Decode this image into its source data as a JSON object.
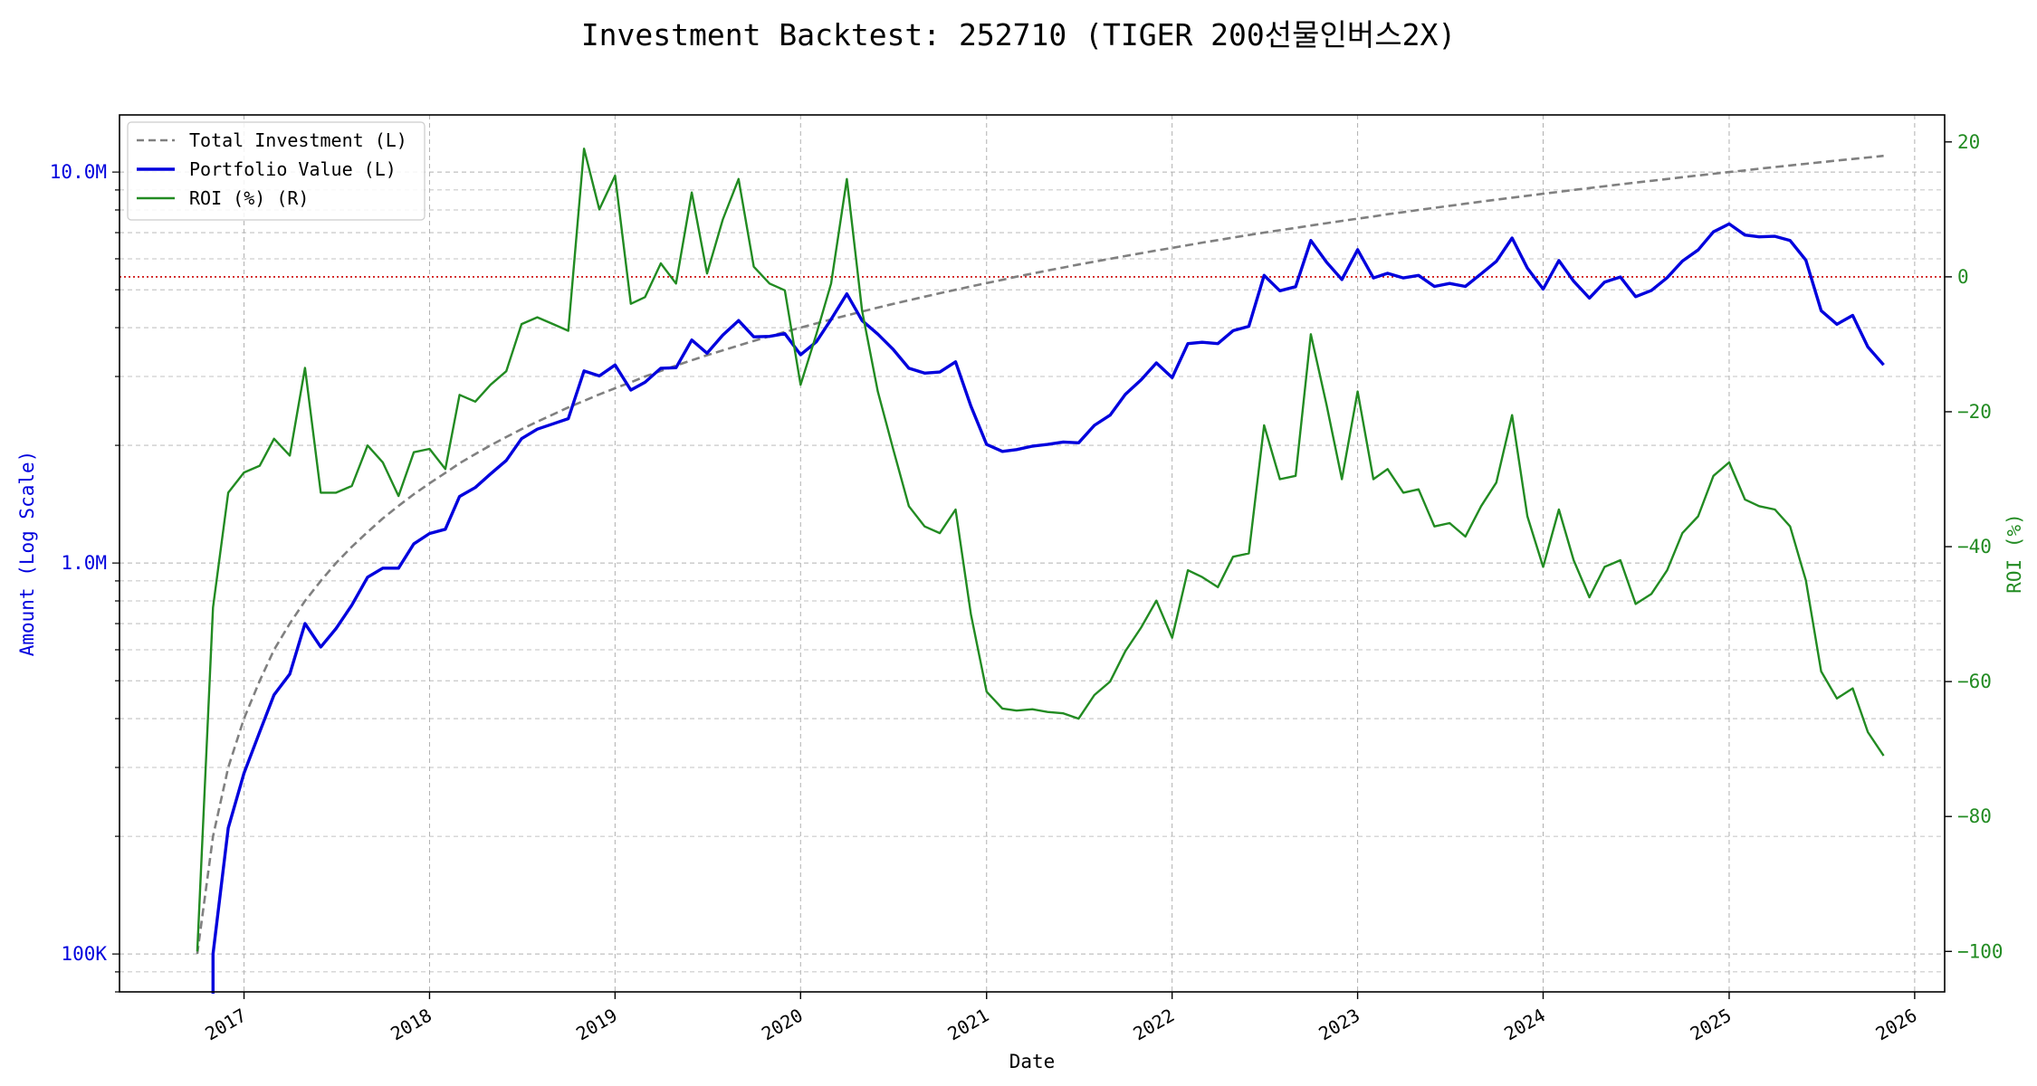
{
  "chart_data": {
    "type": "line",
    "title": "Investment Backtest: 252710 (TIGER 200선물인버스2X)",
    "xlabel": "Date",
    "ylabel_left": "Amount (Log Scale)",
    "ylabel_right": "ROI (%)",
    "y_left_scale": "log",
    "y_left_lim": [
      80000,
      14000000
    ],
    "y_right_lim": [
      -106,
      24
    ],
    "x_lim": [
      "2016-05-01",
      "2026-03-01"
    ],
    "grid": true,
    "legend_position": "upper-left",
    "x_ticks": [
      {
        "date": "2017-01-01",
        "label": "2017"
      },
      {
        "date": "2018-01-01",
        "label": "2018"
      },
      {
        "date": "2019-01-01",
        "label": "2019"
      },
      {
        "date": "2020-01-01",
        "label": "2020"
      },
      {
        "date": "2021-01-01",
        "label": "2021"
      },
      {
        "date": "2022-01-01",
        "label": "2022"
      },
      {
        "date": "2023-01-01",
        "label": "2023"
      },
      {
        "date": "2024-01-01",
        "label": "2024"
      },
      {
        "date": "2025-01-01",
        "label": "2025"
      },
      {
        "date": "2026-01-01",
        "label": "2026"
      }
    ],
    "y_left_ticks": [
      {
        "value": 100000,
        "label": "100K"
      },
      {
        "value": 1000000,
        "label": "1.0M"
      },
      {
        "value": 10000000,
        "label": "10.0M"
      }
    ],
    "y_right_ticks": [
      {
        "value": 20,
        "label": "20"
      },
      {
        "value": 0,
        "label": "0"
      },
      {
        "value": -20,
        "label": "−20"
      },
      {
        "value": -40,
        "label": "−40"
      },
      {
        "value": -60,
        "label": "−60"
      },
      {
        "value": -80,
        "label": "−80"
      },
      {
        "value": -100,
        "label": "−100"
      }
    ],
    "reference_line": {
      "axis": "right",
      "value": 0,
      "color": "#cc0000",
      "style": "dotted"
    },
    "dates": [
      "2016-10-01",
      "2016-11-01",
      "2016-12-01",
      "2017-01-01",
      "2017-02-01",
      "2017-03-01",
      "2017-04-01",
      "2017-05-01",
      "2017-06-01",
      "2017-07-01",
      "2017-08-01",
      "2017-09-01",
      "2017-10-01",
      "2017-11-01",
      "2017-12-01",
      "2018-01-01",
      "2018-02-01",
      "2018-03-01",
      "2018-04-01",
      "2018-05-01",
      "2018-06-01",
      "2018-07-01",
      "2018-08-01",
      "2018-09-01",
      "2018-10-01",
      "2018-11-01",
      "2018-12-01",
      "2019-01-01",
      "2019-02-01",
      "2019-03-01",
      "2019-04-01",
      "2019-05-01",
      "2019-06-01",
      "2019-07-01",
      "2019-08-01",
      "2019-09-01",
      "2019-10-01",
      "2019-11-01",
      "2019-12-01",
      "2020-01-01",
      "2020-02-01",
      "2020-03-01",
      "2020-04-01",
      "2020-05-01",
      "2020-06-01",
      "2020-07-01",
      "2020-08-01",
      "2020-09-01",
      "2020-10-01",
      "2020-11-01",
      "2020-12-01",
      "2021-01-01",
      "2021-02-01",
      "2021-03-01",
      "2021-04-01",
      "2021-05-01",
      "2021-06-01",
      "2021-07-01",
      "2021-08-01",
      "2021-09-01",
      "2021-10-01",
      "2021-11-01",
      "2021-12-01",
      "2022-01-01",
      "2022-02-01",
      "2022-03-01",
      "2022-04-01",
      "2022-05-01",
      "2022-06-01",
      "2022-07-01",
      "2022-08-01",
      "2022-09-01",
      "2022-10-01",
      "2022-11-01",
      "2022-12-01",
      "2023-01-01",
      "2023-02-01",
      "2023-03-01",
      "2023-04-01",
      "2023-05-01",
      "2023-06-01",
      "2023-07-01",
      "2023-08-01",
      "2023-09-01",
      "2023-10-01",
      "2023-11-01",
      "2023-12-01",
      "2024-01-01",
      "2024-02-01",
      "2024-03-01",
      "2024-04-01",
      "2024-05-01",
      "2024-06-01",
      "2024-07-01",
      "2024-08-01",
      "2024-09-01",
      "2024-10-01",
      "2024-11-01",
      "2024-12-01",
      "2025-01-01",
      "2025-02-01",
      "2025-03-01",
      "2025-04-01",
      "2025-05-01",
      "2025-06-01",
      "2025-07-01",
      "2025-08-01",
      "2025-09-01",
      "2025-10-01",
      "2025-11-01"
    ],
    "series": [
      {
        "name": "Total Investment (L)",
        "axis": "left",
        "color": "#808080",
        "style": "dashed",
        "values": [
          100000,
          200000,
          300000,
          400000,
          500000,
          600000,
          700000,
          800000,
          900000,
          1000000,
          1100000,
          1200000,
          1300000,
          1400000,
          1500000,
          1600000,
          1700000,
          1800000,
          1900000,
          2000000,
          2100000,
          2200000,
          2300000,
          2400000,
          2500000,
          2600000,
          2700000,
          2800000,
          2900000,
          3000000,
          3100000,
          3200000,
          3300000,
          3400000,
          3500000,
          3600000,
          3700000,
          3800000,
          3900000,
          4000000,
          4100000,
          4200000,
          4300000,
          4400000,
          4500000,
          4600000,
          4700000,
          4800000,
          4900000,
          5000000,
          5100000,
          5200000,
          5300000,
          5400000,
          5500000,
          5600000,
          5700000,
          5800000,
          5900000,
          6000000,
          6100000,
          6200000,
          6300000,
          6400000,
          6500000,
          6600000,
          6700000,
          6800000,
          6900000,
          7000000,
          7100000,
          7200000,
          7300000,
          7400000,
          7500000,
          7600000,
          7700000,
          7800000,
          7900000,
          8000000,
          8100000,
          8200000,
          8300000,
          8400000,
          8500000,
          8600000,
          8700000,
          8800000,
          8900000,
          9000000,
          9100000,
          9200000,
          9300000,
          9400000,
          9500000,
          9600000,
          9700000,
          9800000,
          9900000,
          10000000,
          10100000,
          10200000,
          10300000,
          10400000,
          10500000,
          10600000,
          10700000,
          10800000,
          10900000,
          11000000
        ]
      },
      {
        "name": "Portfolio Value (L)",
        "axis": "left",
        "color": "#0000dd",
        "style": "solid",
        "values": [
          null,
          100000,
          210000,
          290000,
          370000,
          460000,
          520000,
          700000,
          610000,
          680000,
          780000,
          920000,
          970000,
          970000,
          1120000,
          1190000,
          1220000,
          1480000,
          1560000,
          1690000,
          1830000,
          2080000,
          2200000,
          2270000,
          2340000,
          3100000,
          3010000,
          3210000,
          2770000,
          2900000,
          3150000,
          3160000,
          3720000,
          3440000,
          3830000,
          4170000,
          3790000,
          3800000,
          3860000,
          3410000,
          3680000,
          4200000,
          4880000,
          4170000,
          3850000,
          3520000,
          3150000,
          3060000,
          3080000,
          3270000,
          2520000,
          2010000,
          1930000,
          1950000,
          1990000,
          2010000,
          2040000,
          2030000,
          2250000,
          2390000,
          2700000,
          2940000,
          3250000,
          2980000,
          3640000,
          3670000,
          3640000,
          3930000,
          4030000,
          5440000,
          4970000,
          5090000,
          6680000,
          5880000,
          5310000,
          6330000,
          5360000,
          5510000,
          5360000,
          5440000,
          5100000,
          5190000,
          5100000,
          5490000,
          5910000,
          6780000,
          5680000,
          5020000,
          5940000,
          5260000,
          4760000,
          5230000,
          5390000,
          4800000,
          4980000,
          5370000,
          5920000,
          6320000,
          7030000,
          7370000,
          6900000,
          6830000,
          6850000,
          6680000,
          5950000,
          4420000,
          4080000,
          4300000,
          3570000,
          3210000
        ]
      },
      {
        "name": "ROI (%) (R)",
        "axis": "right",
        "color": "#228b22",
        "style": "solid",
        "values": [
          -100,
          -49,
          -32,
          -29,
          -28,
          -24,
          -26.5,
          -13.5,
          -32,
          -32,
          -31,
          -25,
          -27.5,
          -32.5,
          -26,
          -25.5,
          -28.5,
          -17.5,
          -18.5,
          -16,
          -14,
          -7,
          -6,
          -7,
          -8,
          19,
          10,
          15,
          -4,
          -3,
          2,
          -1,
          12.5,
          0.5,
          8.5,
          14.5,
          1.5,
          -1,
          -2,
          -16,
          -8.5,
          -1,
          14.5,
          -5,
          -17,
          -25.5,
          -34,
          -37,
          -38,
          -34.5,
          -50,
          -61.5,
          -64,
          -64.3,
          -64.1,
          -64.5,
          -64.7,
          -65.5,
          -62,
          -60,
          -55.5,
          -52,
          -48,
          -53.5,
          -43.5,
          -44.5,
          -46,
          -41.5,
          -41,
          -22,
          -30,
          -29.5,
          -8.5,
          -19,
          -30,
          -17,
          -30,
          -28.5,
          -32,
          -31.5,
          -37,
          -36.5,
          -38.5,
          -34,
          -30.5,
          -20.5,
          -35.5,
          -43,
          -34.5,
          -42,
          -47.5,
          -43,
          -42,
          -48.5,
          -47,
          -43.5,
          -38,
          -35.5,
          -29.5,
          -27.5,
          -33,
          -34,
          -34.5,
          -37,
          -45,
          -58.5,
          -62.5,
          -61,
          -67.5,
          -71
        ]
      }
    ]
  }
}
